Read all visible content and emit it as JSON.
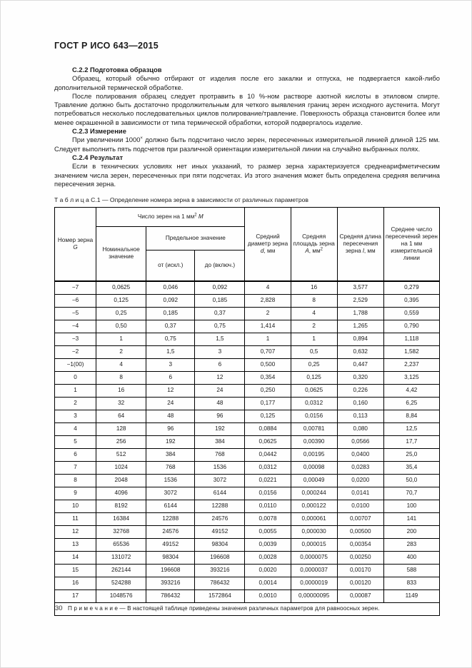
{
  "doc": {
    "title": "ГОСТ Р ИСО 643—2015",
    "page_number": "30"
  },
  "sections": {
    "c22": {
      "heading": "С.2.2 Подготовка образцов",
      "p1": "Образец, который обычно отбирают от изделия после его закалки и отпуска, не подвергается какой-либо дополнительной термической обработке.",
      "p2": "После полирования образец следует протравить в 10 %-ном растворе азотной кислоты в этиловом спирте. Травление должно быть достаточно продолжительным для четкого выявления границ зерен исходного аустенита. Могут потребоваться несколько последовательных циклов полирование/травление. Поверхность образца становится более или менее окрашенной в зависимости от типа термической обработки, которой подвергалось изделие."
    },
    "c23": {
      "heading": "С.2.3 Измерение",
      "p1_before": "При увеличении 1000",
      "p1_sup": "×",
      "p1_after": " должно быть подсчитано число зерен, пересеченных измерительной линией длиной 125 мм. Следует выполнить пять подсчетов при различной ориентации измерительной линии на случайно выбранных полях."
    },
    "c24": {
      "heading": "С.2.4 Результат",
      "p1": "Если в технических условиях нет иных указаний, то размер зерна характеризуется среднеарифметическим значением числа зерен, пересеченных при пяти подсчетах. Из этого значения может быть определена средняя величина пересечения зерна."
    }
  },
  "table": {
    "caption": "Т а б л и ц а  С.1 — Определение номера зерна в зависимости от различных параметров",
    "headers": {
      "grain_number_text": "Номер зерна",
      "grain_number_var": "G",
      "count_text": "Число зерен на 1 мм",
      "count_sup": "2",
      "count_var": "M",
      "nominal": "Номинальное значение",
      "limit": "Предельное значение",
      "from": "от (искл.)",
      "to": "до (включ.)",
      "diameter_pre": "Средний диаметр зерна",
      "diameter_var": "d",
      "diameter_post": ", мм",
      "area_pre": "Средняя площадь зерна",
      "area_var": "A",
      "area_post": ", мм",
      "area_sup": "2",
      "length_pre": "Средняя длина пересечения зерна",
      "length_var": "l",
      "length_post": ", мм",
      "intersections": "Среднее число пересечений зерен на 1 мм измерительной линии"
    },
    "rows": [
      [
        "−7",
        "0,0625",
        "0,046",
        "0,092",
        "4",
        "16",
        "3,577",
        "0,279"
      ],
      [
        "−6",
        "0,125",
        "0,092",
        "0,185",
        "2,828",
        "8",
        "2,529",
        "0,395"
      ],
      [
        "−5",
        "0,25",
        "0,185",
        "0,37",
        "2",
        "4",
        "1,788",
        "0,559"
      ],
      [
        "−4",
        "0,50",
        "0,37",
        "0,75",
        "1,414",
        "2",
        "1,265",
        "0,790"
      ],
      [
        "−3",
        "1",
        "0,75",
        "1,5",
        "1",
        "1",
        "0,894",
        "1,118"
      ],
      [
        "−2",
        "2",
        "1,5",
        "3",
        "0,707",
        "0,5",
        "0,632",
        "1,582"
      ],
      [
        "−1(00)",
        "4",
        "3",
        "6",
        "0,500",
        "0,25",
        "0,447",
        "2,237"
      ],
      [
        "0",
        "8",
        "6",
        "12",
        "0,354",
        "0,125",
        "0,320",
        "3,125"
      ],
      [
        "1",
        "16",
        "12",
        "24",
        "0,250",
        "0,0625",
        "0,226",
        "4,42"
      ],
      [
        "2",
        "32",
        "24",
        "48",
        "0,177",
        "0,0312",
        "0,160",
        "6,25"
      ],
      [
        "3",
        "64",
        "48",
        "96",
        "0,125",
        "0,0156",
        "0,113",
        "8,84"
      ],
      [
        "4",
        "128",
        "96",
        "192",
        "0,0884",
        "0,00781",
        "0,080",
        "12,5"
      ],
      [
        "5",
        "256",
        "192",
        "384",
        "0,0625",
        "0,00390",
        "0,0566",
        "17,7"
      ],
      [
        "6",
        "512",
        "384",
        "768",
        "0,0442",
        "0,00195",
        "0,0400",
        "25,0"
      ],
      [
        "7",
        "1024",
        "768",
        "1536",
        "0,0312",
        "0,00098",
        "0,0283",
        "35,4"
      ],
      [
        "8",
        "2048",
        "1536",
        "3072",
        "0,0221",
        "0,00049",
        "0,0200",
        "50,0"
      ],
      [
        "9",
        "4096",
        "3072",
        "6144",
        "0,0156",
        "0,000244",
        "0,0141",
        "70,7"
      ],
      [
        "10",
        "8192",
        "6144",
        "12288",
        "0,0110",
        "0,000122",
        "0,0100",
        "100"
      ],
      [
        "11",
        "16384",
        "12288",
        "24576",
        "0,0078",
        "0,000061",
        "0,00707",
        "141"
      ],
      [
        "12",
        "32768",
        "24576",
        "49152",
        "0,0055",
        "0,000030",
        "0,00500",
        "200"
      ],
      [
        "13",
        "65536",
        "49152",
        "98304",
        "0,0039",
        "0,000015",
        "0,00354",
        "283"
      ],
      [
        "14",
        "131072",
        "98304",
        "196608",
        "0,0028",
        "0,0000075",
        "0,00250",
        "400"
      ],
      [
        "15",
        "262144",
        "196608",
        "393216",
        "0,0020",
        "0,0000037",
        "0,00170",
        "588"
      ],
      [
        "16",
        "524288",
        "393216",
        "786432",
        "0,0014",
        "0,0000019",
        "0,00120",
        "833"
      ],
      [
        "17",
        "1048576",
        "786432",
        "1572864",
        "0,0010",
        "0,00000095",
        "0,00087",
        "1149"
      ]
    ],
    "note": "П р и м е ч а н и е — В настоящей таблице приведены значения различных параметров для равноосных зерен."
  }
}
